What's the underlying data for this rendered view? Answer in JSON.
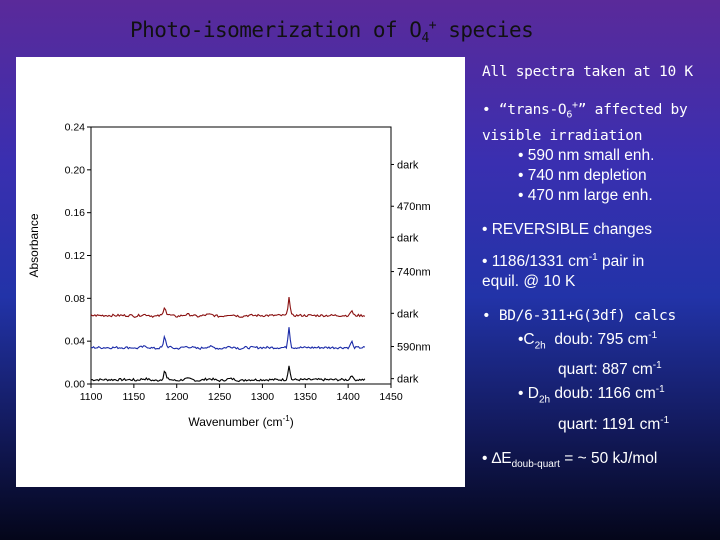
{
  "slide": {
    "title_pre": "Photo-isomerization of O",
    "title_sub": "4",
    "title_sup": "+",
    "title_post": " species"
  },
  "bullets": {
    "b1": "All spectra taken at 10 K",
    "b2a_pre": "• “trans-O",
    "b2a_sub": "6",
    "b2a_sup": "+",
    "b2a_post": "” affected by",
    "b2b": "visible irradiation",
    "b2c": "• 590 nm small enh.",
    "b2d": "• 740 nm depletion",
    "b2e": "• 470 nm large enh.",
    "b3": "• REVERSIBLE changes",
    "b4a_pre": "• 1186/1331 cm",
    "b4a_sup": "-1",
    "b4a_post": " pair in",
    "b4b": "equil. @ 10 K",
    "b5a": "• BD/6-311+G(3df) calcs",
    "b5b_pre": "•C",
    "b5b_sub": "2h",
    "b5b_mid": "  doub: 795 cm",
    "b5b_sup": "-1",
    "b5c_pre": "quart: 887 cm",
    "b5c_sup": "-1",
    "b5d_pre": "• D",
    "b5d_sub": "2h",
    "b5d_mid": " doub: 1166 cm",
    "b5d_sup": "-1",
    "b5e_pre": "quart: 1191 cm",
    "b5e_sup": "-1",
    "b6_pre": "• ",
    "b6_delta": "∆E",
    "b6_sub": "doub-quart",
    "b6_post": " = ~ 50 kJ/mol"
  },
  "chart_data": {
    "type": "line",
    "xlabel": "Wavenumber (cm",
    "xlabel_sup": "-1",
    "xlabel_post": ")",
    "ylabel": "Absorbance",
    "xlim": [
      1100,
      1450
    ],
    "ylim": [
      0.0,
      0.24
    ],
    "x_ticks": [
      "1100",
      "1150",
      "1200",
      "1250",
      "1300",
      "1350",
      "1400",
      "1450"
    ],
    "y_ticks": [
      "0.00",
      "0.04",
      "0.08",
      "0.12",
      "0.16",
      "0.20",
      "0.24"
    ],
    "series": [
      {
        "name": "dark",
        "color": "#000000",
        "baseline": 0.004,
        "peaks": [
          [
            1186,
            0.008
          ],
          [
            1331,
            0.014
          ],
          [
            1404,
            0.005
          ]
        ]
      },
      {
        "name": "590nm",
        "color": "#1a2aa8",
        "baseline": 0.034,
        "peaks": [
          [
            1186,
            0.01
          ],
          [
            1331,
            0.02
          ],
          [
            1404,
            0.006
          ]
        ]
      },
      {
        "name": "dark",
        "color": "#8a1010",
        "baseline": 0.064,
        "peaks": [
          [
            1186,
            0.008
          ],
          [
            1331,
            0.018
          ],
          [
            1404,
            0.005
          ]
        ]
      },
      {
        "name": "740nm",
        "color": "#000000",
        "baseline": 0.0,
        "hidden": true,
        "peaks": []
      },
      {
        "name": "dark",
        "color": "#000000",
        "baseline": 0.0,
        "hidden": true,
        "peaks": []
      },
      {
        "name": "470nm",
        "color": "#000000",
        "baseline": 0.0,
        "hidden": true,
        "peaks": []
      },
      {
        "name": "dark",
        "color": "#000000",
        "baseline": 0.0,
        "hidden": true,
        "peaks": []
      }
    ],
    "series_labels": [
      {
        "text": "dark",
        "y": 0.005
      },
      {
        "text": "590nm",
        "y": 0.035
      },
      {
        "text": "dark",
        "y": 0.066
      },
      {
        "text": "740nm",
        "y": 0.105
      },
      {
        "text": "dark",
        "y": 0.137
      },
      {
        "text": "470nm",
        "y": 0.166
      },
      {
        "text": "dark",
        "y": 0.205
      }
    ]
  }
}
